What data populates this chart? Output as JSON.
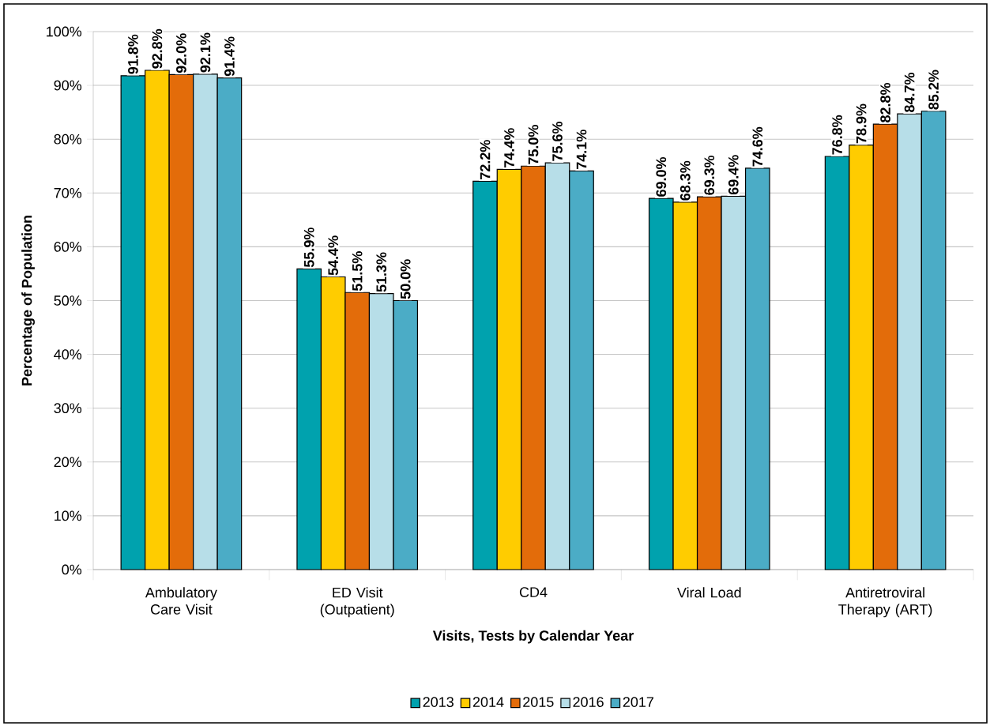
{
  "chart_data": {
    "type": "bar",
    "xlabel": "Visits, Tests by Calendar Year",
    "ylabel": "Percentage of Population",
    "categories": [
      "Ambulatory Care Visit",
      "ED Visit (Outpatient)",
      "CD4",
      "Viral Load",
      "Antiretroviral Therapy (ART)"
    ],
    "series": [
      {
        "name": "2013",
        "color": "#00a2ae",
        "values": [
          91.8,
          55.9,
          72.2,
          69.0,
          76.8
        ],
        "value_labels": [
          "91.8%",
          "55.9%",
          "72.2%",
          "69.0%",
          "76.8%"
        ]
      },
      {
        "name": "2014",
        "color": "#ffcc00",
        "values": [
          92.8,
          54.4,
          74.4,
          68.3,
          78.9
        ],
        "value_labels": [
          "92.8%",
          "54.4%",
          "74.4%",
          "68.3%",
          "78.9%"
        ]
      },
      {
        "name": "2015",
        "color": "#e36c0a",
        "values": [
          92.0,
          51.5,
          75.0,
          69.3,
          82.8
        ],
        "value_labels": [
          "92.0%",
          "51.5%",
          "75.0%",
          "69.3%",
          "82.8%"
        ]
      },
      {
        "name": "2016",
        "color": "#b7dee8",
        "values": [
          92.1,
          51.3,
          75.6,
          69.4,
          84.7
        ],
        "value_labels": [
          "92.1%",
          "51.3%",
          "75.6%",
          "69.4%",
          "84.7%"
        ]
      },
      {
        "name": "2017",
        "color": "#4bacc6",
        "values": [
          91.4,
          50.0,
          74.1,
          74.6,
          85.2
        ],
        "value_labels": [
          "91.4%",
          "50.0%",
          "74.1%",
          "74.6%",
          "85.2%"
        ]
      }
    ],
    "ylim": [
      0,
      100
    ],
    "yticks": [
      {
        "value": 0,
        "label": "0%"
      },
      {
        "value": 10,
        "label": "10%"
      },
      {
        "value": 20,
        "label": "20%"
      },
      {
        "value": 30,
        "label": "30%"
      },
      {
        "value": 40,
        "label": "40%"
      },
      {
        "value": 50,
        "label": "50%"
      },
      {
        "value": 60,
        "label": "60%"
      },
      {
        "value": 70,
        "label": "70%"
      },
      {
        "value": 80,
        "label": "80%"
      },
      {
        "value": 90,
        "label": "90%"
      },
      {
        "value": 100,
        "label": "100%"
      }
    ],
    "grid": "y",
    "legend": "bottom"
  }
}
